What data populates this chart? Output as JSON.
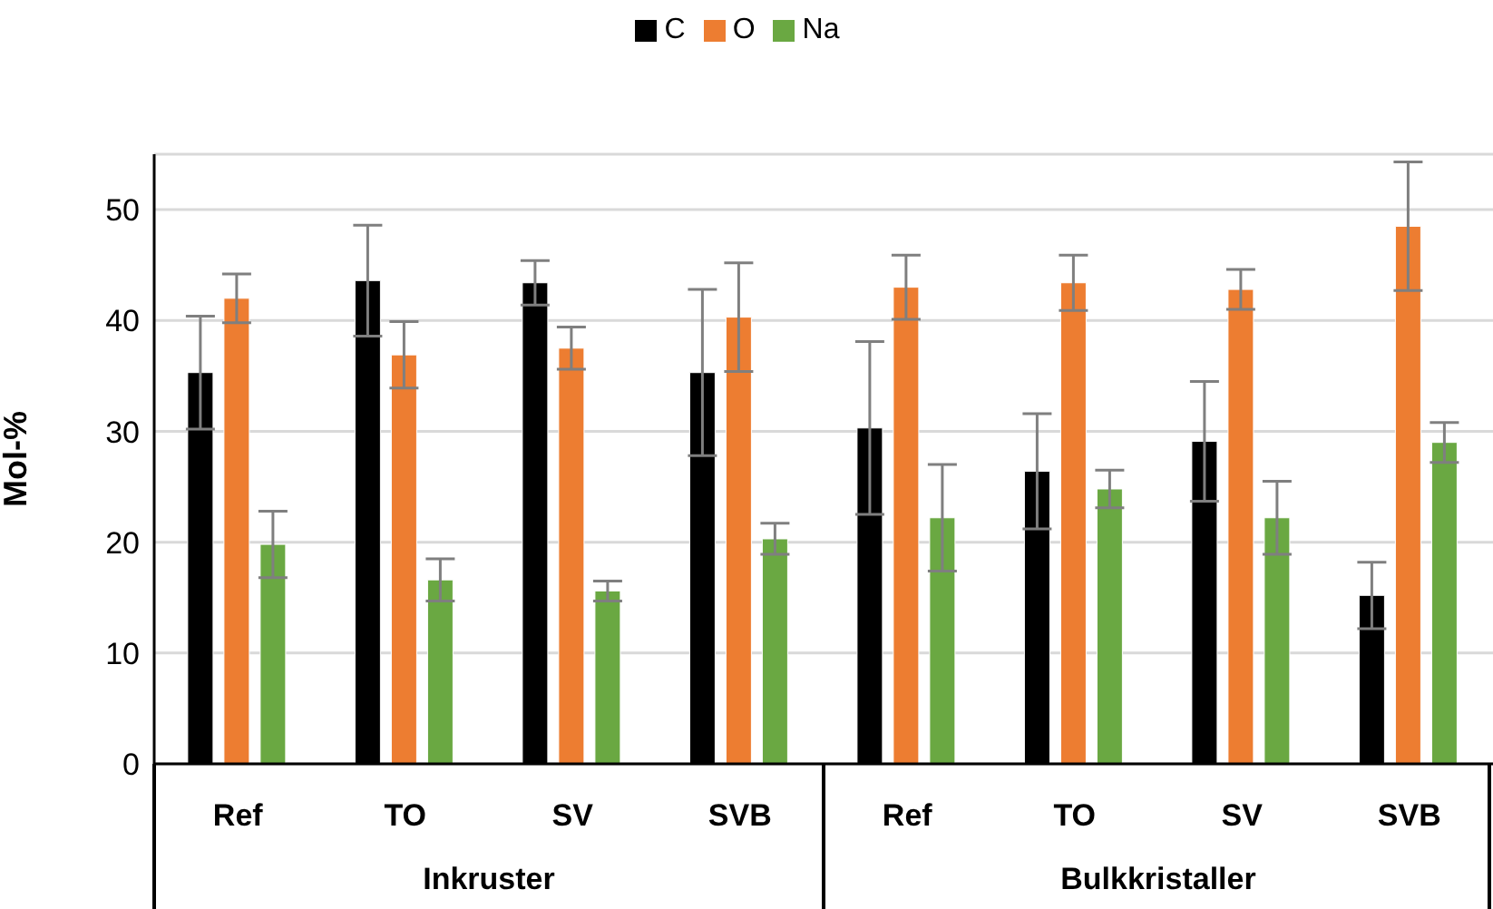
{
  "chart_data": {
    "type": "bar",
    "ylabel": "Mol-%",
    "categories": [
      "Ref",
      "TO",
      "SV",
      "SVB",
      "Ref",
      "TO",
      "SV",
      "SVB"
    ],
    "annotations": [
      "Inkruster",
      "Bulkkristaller"
    ],
    "series": [
      {
        "name": "C",
        "color": "#000000",
        "values": [
          35.3,
          43.6,
          43.4,
          35.3,
          30.3,
          26.4,
          29.1,
          15.2
        ],
        "errors": [
          5.1,
          5.0,
          2.0,
          7.5,
          7.8,
          5.2,
          5.4,
          3.0
        ]
      },
      {
        "name": "O",
        "color": "#ed7d31",
        "values": [
          42.0,
          36.9,
          37.5,
          40.3,
          43.0,
          43.4,
          42.8,
          48.5
        ],
        "errors": [
          2.2,
          3.0,
          1.9,
          4.9,
          2.9,
          2.5,
          1.8,
          5.8
        ]
      },
      {
        "name": "Na",
        "color": "#6aa842",
        "values": [
          19.8,
          16.6,
          15.6,
          20.3,
          22.2,
          24.8,
          22.2,
          29.0
        ],
        "errors": [
          3.0,
          1.9,
          0.9,
          1.4,
          4.8,
          1.7,
          3.3,
          1.8
        ]
      }
    ],
    "ylim": [
      0,
      55
    ],
    "yticks": [
      0,
      10,
      20,
      30,
      40,
      50
    ],
    "grid": "y",
    "legend": "top"
  }
}
